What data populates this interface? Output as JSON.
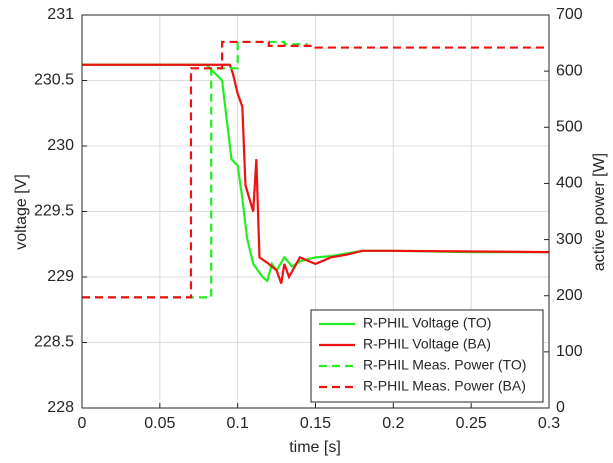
{
  "chart_data": {
    "type": "line",
    "xlabel": "time [s]",
    "ylabel": "voltage [V]",
    "y2label": "active power [W]",
    "xlim": [
      0,
      0.3
    ],
    "xticks": [
      0,
      0.05,
      0.1,
      0.15,
      0.2,
      0.25,
      0.3
    ],
    "ylim": [
      228,
      231
    ],
    "yticks": [
      228,
      228.5,
      229,
      229.5,
      230,
      230.5,
      231
    ],
    "y2lim": [
      0,
      700
    ],
    "y2ticks": [
      0,
      100,
      200,
      300,
      400,
      500,
      600,
      700
    ],
    "grid": true,
    "legend": "lower right",
    "series": [
      {
        "name": "R-PHIL Voltage (TO)",
        "color": "#22ee22",
        "dash": false,
        "x": [
          0,
          0.08,
          0.09,
          0.093,
          0.096,
          0.1,
          0.103,
          0.106,
          0.11,
          0.113,
          0.116,
          0.119,
          0.122,
          0.125,
          0.13,
          0.135,
          0.14,
          0.15,
          0.16,
          0.18,
          0.2,
          0.25,
          0.3
        ],
        "values": [
          230.62,
          230.62,
          230.5,
          230.2,
          229.9,
          229.85,
          229.6,
          229.3,
          229.1,
          229.05,
          229.0,
          228.97,
          229.1,
          229.05,
          229.15,
          229.08,
          229.12,
          229.15,
          229.16,
          229.2,
          229.2,
          229.19,
          229.19
        ]
      },
      {
        "name": "R-PHIL Voltage (BA)",
        "color": "#ee1111",
        "dash": false,
        "x": [
          0,
          0.095,
          0.097,
          0.1,
          0.103,
          0.105,
          0.11,
          0.112,
          0.114,
          0.12,
          0.125,
          0.128,
          0.13,
          0.133,
          0.14,
          0.15,
          0.16,
          0.17,
          0.18,
          0.2,
          0.3
        ],
        "values": [
          230.62,
          230.62,
          230.55,
          230.4,
          230.3,
          229.7,
          229.5,
          229.9,
          229.15,
          229.1,
          229.05,
          228.95,
          229.1,
          229.0,
          229.15,
          229.1,
          229.15,
          229.17,
          229.2,
          229.2,
          229.19
        ]
      },
      {
        "name": "R-PHIL Meas. Power (TO)",
        "color": "#22ee22",
        "dash": true,
        "axis": "y2",
        "x": [
          0,
          0.083,
          0.083,
          0.1,
          0.1,
          0.13,
          0.13,
          0.145
        ],
        "values": [
          197,
          197,
          605,
          605,
          652,
          652,
          648,
          648
        ]
      },
      {
        "name": "R-PHIL Meas. Power (BA)",
        "color": "#ee1111",
        "dash": true,
        "axis": "y2",
        "x": [
          0,
          0.07,
          0.07,
          0.09,
          0.09,
          0.12,
          0.12,
          0.15,
          0.15,
          0.3
        ],
        "values": [
          197,
          197,
          605,
          605,
          652,
          652,
          645,
          645,
          642,
          642
        ]
      }
    ]
  }
}
